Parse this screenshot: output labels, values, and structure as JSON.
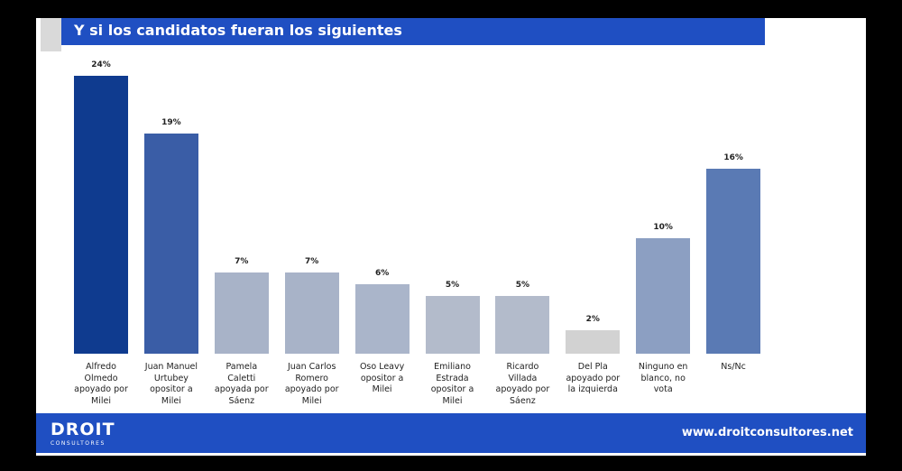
{
  "chart_data": {
    "type": "bar",
    "title": "Y si los candidatos fueran los siguientes",
    "categories": [
      "Alfredo\nOlmedo\napoyado por\nMilei",
      "Juan Manuel\nUrtubey\nopositor a\nMilei",
      "Pamela\nCaletti\napoyada por\nSáenz",
      "Juan Carlos\nRomero\napoyado por\nMilei",
      "Oso Leavy\nopositor a\nMilei",
      "Emiliano\nEstrada\nopositor a\nMilei",
      "Ricardo\nVillada\napoyado por\nSáenz",
      "Del Pla\napoyado por\nla izquierda",
      "Ninguno en\nblanco, no\nvota",
      "Ns/Nc"
    ],
    "values": [
      24,
      19,
      7,
      7,
      6,
      5,
      5,
      2,
      10,
      16
    ],
    "value_labels": [
      "24%",
      "19%",
      "7%",
      "7%",
      "6%",
      "5%",
      "5%",
      "2%",
      "10%",
      "16%"
    ],
    "colors": [
      "#0f3b8f",
      "#3a5da6",
      "#a8b3c8",
      "#a8b3c8",
      "#aab5ca",
      "#b3bbcb",
      "#b3bbcb",
      "#d2d2d2",
      "#8c9fc2",
      "#5a7ab4"
    ]
  },
  "footer": {
    "logo": "DROIT",
    "logo_sub": "CONSULTORES",
    "url": "www.droitconsultores.net"
  }
}
